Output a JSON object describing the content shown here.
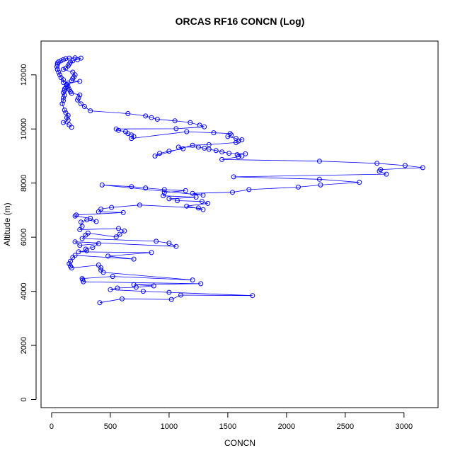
{
  "chart_data": {
    "type": "scatter",
    "title": "ORCAS RF16 CONCN (Log)",
    "xlabel": "CONCN",
    "ylabel": "Altitude (m)",
    "xlim": [
      -90,
      3290
    ],
    "ylim": [
      -300,
      13250
    ],
    "xticks": [
      0,
      500,
      1000,
      1500,
      2000,
      2500,
      3000
    ],
    "yticks": [
      0,
      2000,
      4000,
      6000,
      8000,
      10000,
      12000
    ],
    "grid": false,
    "legend": "none",
    "colors": {
      "series": "#0000ff",
      "axis": "#000000"
    },
    "marker": "open-circle",
    "connect_points": true,
    "series": [
      {
        "points": [
          [
            410,
            3580
          ],
          [
            600,
            3720
          ],
          [
            1020,
            3700
          ],
          [
            1100,
            3860
          ],
          [
            1710,
            3840
          ],
          [
            1000,
            3960
          ],
          [
            780,
            4000
          ],
          [
            500,
            4060
          ],
          [
            560,
            4120
          ],
          [
            720,
            4150
          ],
          [
            870,
            4200
          ],
          [
            700,
            4250
          ],
          [
            1270,
            4280
          ],
          [
            270,
            4350
          ],
          [
            265,
            4420
          ],
          [
            260,
            4470
          ],
          [
            520,
            4550
          ],
          [
            1200,
            4420
          ],
          [
            440,
            4700
          ],
          [
            420,
            4780
          ],
          [
            420,
            4870
          ],
          [
            400,
            4970
          ],
          [
            170,
            4860
          ],
          [
            160,
            4930
          ],
          [
            150,
            5020
          ],
          [
            160,
            5110
          ],
          [
            180,
            5250
          ],
          [
            200,
            5330
          ],
          [
            700,
            5190
          ],
          [
            480,
            5300
          ],
          [
            850,
            5430
          ],
          [
            230,
            5460
          ],
          [
            300,
            5500
          ],
          [
            290,
            5560
          ],
          [
            350,
            5620
          ],
          [
            400,
            5760
          ],
          [
            240,
            5700
          ],
          [
            200,
            5830
          ],
          [
            1060,
            5660
          ],
          [
            1000,
            5780
          ],
          [
            890,
            5850
          ],
          [
            260,
            5950
          ],
          [
            290,
            6080
          ],
          [
            310,
            6150
          ],
          [
            550,
            6010
          ],
          [
            580,
            6110
          ],
          [
            620,
            6230
          ],
          [
            570,
            6320
          ],
          [
            240,
            6280
          ],
          [
            260,
            6400
          ],
          [
            250,
            6560
          ],
          [
            300,
            6640
          ],
          [
            380,
            6580
          ],
          [
            330,
            6700
          ],
          [
            200,
            6780
          ],
          [
            210,
            6820
          ],
          [
            610,
            6910
          ],
          [
            400,
            6940
          ],
          [
            420,
            7040
          ],
          [
            510,
            7100
          ],
          [
            750,
            7190
          ],
          [
            1250,
            7080
          ],
          [
            1290,
            7020
          ],
          [
            1150,
            7150
          ],
          [
            1330,
            7250
          ],
          [
            1280,
            7320
          ],
          [
            1070,
            7350
          ],
          [
            1000,
            7420
          ],
          [
            1230,
            7480
          ],
          [
            950,
            7530
          ],
          [
            960,
            7650
          ],
          [
            1140,
            7720
          ],
          [
            960,
            7760
          ],
          [
            800,
            7820
          ],
          [
            680,
            7870
          ],
          [
            430,
            7930
          ],
          [
            1290,
            7550
          ],
          [
            1200,
            7620
          ],
          [
            1540,
            7660
          ],
          [
            1680,
            7760
          ],
          [
            2100,
            7850
          ],
          [
            2290,
            7930
          ],
          [
            2620,
            8030
          ],
          [
            2280,
            8140
          ],
          [
            1550,
            8230
          ],
          [
            2850,
            8330
          ],
          [
            2790,
            8440
          ],
          [
            2800,
            8500
          ],
          [
            3160,
            8570
          ],
          [
            3010,
            8650
          ],
          [
            2770,
            8730
          ],
          [
            2280,
            8810
          ],
          [
            1450,
            8870
          ],
          [
            1590,
            8970
          ],
          [
            1620,
            9000
          ],
          [
            1580,
            9050
          ],
          [
            1650,
            9080
          ],
          [
            1510,
            9100
          ],
          [
            1450,
            9150
          ],
          [
            1400,
            9200
          ],
          [
            1340,
            9250
          ],
          [
            1300,
            9290
          ],
          [
            1250,
            9330
          ],
          [
            1080,
            9330
          ],
          [
            1120,
            9270
          ],
          [
            1000,
            9180
          ],
          [
            920,
            9100
          ],
          [
            880,
            9000
          ],
          [
            1200,
            9400
          ],
          [
            1340,
            9420
          ],
          [
            1570,
            9500
          ],
          [
            1590,
            9550
          ],
          [
            1620,
            9600
          ],
          [
            1570,
            9650
          ],
          [
            1500,
            9720
          ],
          [
            1530,
            9780
          ],
          [
            1520,
            9830
          ],
          [
            1380,
            9860
          ],
          [
            1150,
            9900
          ],
          [
            680,
            9650
          ],
          [
            700,
            9720
          ],
          [
            680,
            9780
          ],
          [
            650,
            9830
          ],
          [
            630,
            9900
          ],
          [
            570,
            9950
          ],
          [
            550,
            10000
          ],
          [
            1060,
            10010
          ],
          [
            1300,
            10080
          ],
          [
            1260,
            10140
          ],
          [
            1180,
            10240
          ],
          [
            1050,
            10300
          ],
          [
            900,
            10360
          ],
          [
            850,
            10420
          ],
          [
            800,
            10480
          ],
          [
            650,
            10570
          ],
          [
            330,
            10670
          ],
          [
            280,
            10830
          ],
          [
            250,
            10930
          ],
          [
            220,
            11070
          ],
          [
            230,
            11150
          ],
          [
            240,
            11260
          ],
          [
            170,
            11320
          ],
          [
            160,
            11380
          ],
          [
            150,
            11460
          ],
          [
            140,
            11550
          ],
          [
            130,
            11640
          ],
          [
            100,
            11720
          ],
          [
            100,
            11820
          ],
          [
            80,
            11900
          ],
          [
            70,
            12000
          ],
          [
            60,
            12100
          ],
          [
            50,
            12200
          ],
          [
            45,
            12300
          ],
          [
            50,
            12380
          ],
          [
            50,
            12440
          ],
          [
            60,
            12480
          ],
          [
            80,
            12520
          ],
          [
            100,
            12560
          ],
          [
            120,
            12600
          ],
          [
            150,
            12620
          ],
          [
            200,
            12630
          ],
          [
            250,
            12620
          ],
          [
            220,
            12560
          ],
          [
            180,
            12520
          ],
          [
            160,
            12470
          ],
          [
            150,
            12400
          ],
          [
            140,
            12330
          ],
          [
            120,
            12250
          ],
          [
            100,
            12200
          ],
          [
            180,
            12100
          ],
          [
            200,
            12000
          ],
          [
            190,
            11920
          ],
          [
            180,
            11860
          ],
          [
            170,
            11780
          ],
          [
            240,
            11760
          ],
          [
            140,
            11700
          ],
          [
            130,
            11600
          ],
          [
            120,
            11530
          ],
          [
            110,
            11480
          ],
          [
            110,
            11420
          ],
          [
            100,
            11350
          ],
          [
            110,
            11250
          ],
          [
            100,
            11150
          ],
          [
            100,
            11050
          ],
          [
            90,
            10930
          ],
          [
            110,
            10700
          ],
          [
            120,
            10600
          ],
          [
            140,
            10500
          ],
          [
            130,
            10420
          ],
          [
            140,
            10330
          ],
          [
            100,
            10240
          ],
          [
            150,
            10150
          ],
          [
            170,
            10060
          ]
        ]
      }
    ]
  }
}
